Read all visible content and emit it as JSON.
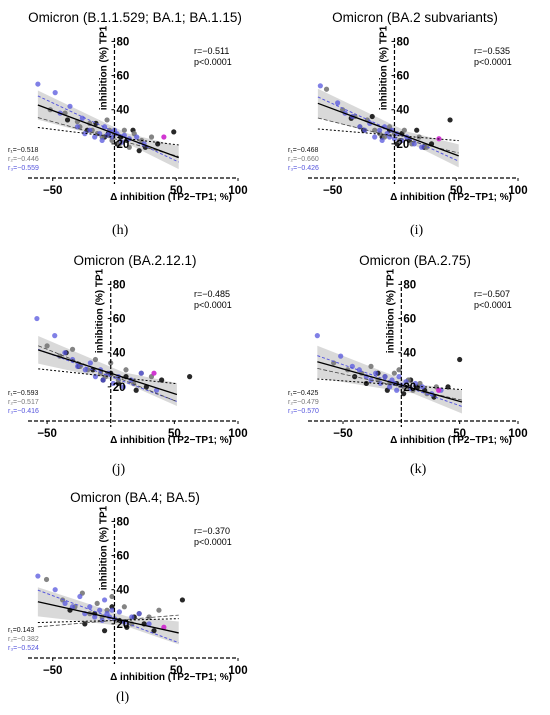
{
  "colors": {
    "group1": "#111111",
    "group2": "#777777",
    "group3": "#5555dd",
    "highlight": "#cc22cc",
    "band": "#cccccc"
  },
  "chart_data": [
    {
      "type": "scatter",
      "panel": "",
      "title": "Omicron (B.1.1.529; BA.1; BA.1.15)",
      "ylabel": "inhibition (%) TP1",
      "xlabel": "Δ inhibition (TP2−TP1; %)",
      "xlim": [
        -70,
        100
      ],
      "ylim": [
        0,
        82
      ],
      "xticks": [
        "−50",
        "50",
        "100"
      ],
      "yticks": [
        "20",
        "40",
        "60",
        "80"
      ],
      "r": "r=−0.511",
      "p": "p<0.0001",
      "r1": "r₁=−0.518",
      "r2": "r₂=−0.446",
      "r3": "r₃=−0.559",
      "fit": {
        "slope": -0.27,
        "intercept": 26
      },
      "fit_g1": {
        "slope": -0.2,
        "intercept": 23
      },
      "fit_g3": {
        "slope": -0.34,
        "intercept": 27
      },
      "fit_dotted": {
        "slope": -0.09,
        "intercept": 24
      },
      "series": [
        {
          "group": 1,
          "x": [
            -38,
            -22,
            -15,
            -8,
            -5,
            2,
            5,
            10,
            15,
            20,
            25,
            35,
            48
          ],
          "y": [
            34,
            28,
            32,
            24,
            26,
            20,
            24,
            22,
            28,
            16,
            18,
            20,
            27
          ]
        },
        {
          "group": 2,
          "x": [
            -52,
            -40,
            -30,
            -28,
            -20,
            -18,
            -14,
            -10,
            -6,
            -4,
            -2,
            0,
            4,
            8,
            12,
            16,
            22,
            30
          ],
          "y": [
            40,
            38,
            33,
            30,
            32,
            28,
            26,
            24,
            34,
            28,
            22,
            26,
            20,
            28,
            18,
            26,
            22,
            24
          ]
        },
        {
          "group": 3,
          "x": [
            -62,
            -48,
            -44,
            -36,
            -30,
            -26,
            -24,
            -20,
            -16,
            -12,
            -10,
            -8,
            -6,
            -4,
            -2,
            0,
            2,
            6,
            8,
            12,
            18,
            24
          ],
          "y": [
            55,
            50,
            38,
            42,
            30,
            35,
            26,
            28,
            24,
            26,
            22,
            30,
            25,
            27,
            24,
            28,
            26,
            21,
            25,
            23,
            24,
            20
          ]
        },
        {
          "group": 4,
          "x": [
            40
          ],
          "y": [
            24
          ]
        }
      ]
    },
    {
      "type": "scatter",
      "panel": "",
      "title": "Omicron (BA.2 subvariants)",
      "ylabel": "inhibition (%) TP1",
      "xlabel": "Δ inhibition (TP2−TP1; %)",
      "xlim": [
        -70,
        100
      ],
      "ylim": [
        0,
        82
      ],
      "xticks": [
        "−50",
        "50",
        "100"
      ],
      "yticks": [
        "20",
        "40",
        "60",
        "80"
      ],
      "r": "r=−0.535",
      "p": "p<0.0001",
      "r1": "r₁=−0.468",
      "r2": "r₂=−0.660",
      "r3": "r₃=−0.426",
      "fit": {
        "slope": -0.27,
        "intercept": 27
      },
      "fit_g1": {
        "slope": -0.18,
        "intercept": 24
      },
      "fit_g3": {
        "slope": -0.33,
        "intercept": 27
      },
      "fit_dotted": {
        "slope": -0.06,
        "intercept": 25
      },
      "series": [
        {
          "group": 1,
          "x": [
            -35,
            -25,
            -18,
            -10,
            -4,
            2,
            6,
            12,
            18,
            24,
            30,
            45
          ],
          "y": [
            35,
            28,
            36,
            24,
            28,
            20,
            26,
            22,
            28,
            18,
            20,
            34
          ]
        },
        {
          "group": 2,
          "x": [
            -55,
            -42,
            -32,
            -28,
            -22,
            -16,
            -12,
            -8,
            -4,
            0,
            4,
            8,
            14,
            20,
            26
          ],
          "y": [
            52,
            40,
            36,
            30,
            34,
            28,
            26,
            24,
            30,
            26,
            22,
            28,
            20,
            24,
            18
          ]
        },
        {
          "group": 3,
          "x": [
            -60,
            -46,
            -40,
            -34,
            -28,
            -24,
            -20,
            -16,
            -12,
            -10,
            -8,
            -6,
            -4,
            -2,
            0,
            2,
            6,
            10,
            16,
            22
          ],
          "y": [
            54,
            44,
            38,
            36,
            30,
            28,
            32,
            24,
            28,
            22,
            30,
            26,
            24,
            28,
            23,
            26,
            22,
            24,
            20,
            18
          ]
        },
        {
          "group": 4,
          "x": [
            36
          ],
          "y": [
            23
          ]
        }
      ]
    },
    {
      "type": "scatter",
      "panel": "",
      "title": "Omicron (BA.2.12.1)",
      "ylabel": "inhibition (%) TP1",
      "xlabel": "Δ inhibition (TP2−TP1; %)",
      "xlim": [
        -65,
        100
      ],
      "ylim": [
        0,
        82
      ],
      "xticks": [
        "−50",
        "50",
        "100"
      ],
      "yticks": [
        "20",
        "40",
        "60",
        "80"
      ],
      "r": "r=−0.485",
      "p": "p<0.0001",
      "r1": "r₁=−0.593",
      "r2": "r₂=−0.517",
      "r3": "r₃=−0.416",
      "fit": {
        "slope": -0.24,
        "intercept": 28
      },
      "fit_g1": {
        "slope": -0.3,
        "intercept": 27
      },
      "fit_g3": {
        "slope": -0.28,
        "intercept": 26
      },
      "fit_dotted": {
        "slope": -0.08,
        "intercept": 26
      },
      "series": [
        {
          "group": 1,
          "x": [
            -35,
            -25,
            -14,
            -6,
            0,
            6,
            12,
            20,
            28,
            40,
            62
          ],
          "y": [
            40,
            32,
            30,
            24,
            28,
            22,
            26,
            18,
            20,
            24,
            26
          ]
        },
        {
          "group": 2,
          "x": [
            -50,
            -40,
            -30,
            -24,
            -18,
            -12,
            -8,
            -4,
            0,
            6,
            12,
            18,
            24,
            32
          ],
          "y": [
            44,
            38,
            42,
            32,
            30,
            36,
            28,
            26,
            34,
            24,
            30,
            22,
            28,
            26
          ]
        },
        {
          "group": 3,
          "x": [
            -58,
            -44,
            -36,
            -30,
            -26,
            -20,
            -16,
            -12,
            -8,
            -6,
            -2,
            2,
            6,
            10,
            16,
            24,
            36
          ],
          "y": [
            60,
            50,
            40,
            36,
            32,
            30,
            34,
            26,
            30,
            24,
            28,
            22,
            26,
            20,
            24,
            28,
            18
          ]
        },
        {
          "group": 4,
          "x": [
            34
          ],
          "y": [
            28
          ]
        }
      ]
    },
    {
      "type": "scatter",
      "panel": "",
      "title": "Omicron (BA.2.75)",
      "ylabel": "inhibition (%) TP1",
      "xlabel": "Δ inhibition (TP2−TP1; %)",
      "xlim": [
        -80,
        100
      ],
      "ylim": [
        0,
        82
      ],
      "xticks": [
        "−50",
        "50",
        "100"
      ],
      "yticks": [
        "20",
        "40",
        "60",
        "80"
      ],
      "r": "r=−0.507",
      "p": "p<0.0001",
      "r1": "r₁=−0.425",
      "r2": "r₂=−0.479",
      "r3": "r₃=−0.570",
      "fit": {
        "slope": -0.19,
        "intercept": 21
      },
      "fit_g1": {
        "slope": -0.15,
        "intercept": 20
      },
      "fit_g3": {
        "slope": -0.24,
        "intercept": 21
      },
      "fit_dotted": {
        "slope": -0.05,
        "intercept": 21
      },
      "series": [
        {
          "group": 1,
          "x": [
            -40,
            -30,
            -20,
            -12,
            -4,
            2,
            8,
            14,
            20,
            28,
            40,
            50
          ],
          "y": [
            26,
            22,
            28,
            18,
            22,
            16,
            24,
            20,
            18,
            14,
            20,
            36
          ]
        },
        {
          "group": 2,
          "x": [
            -58,
            -46,
            -34,
            -26,
            -20,
            -14,
            -10,
            -6,
            -2,
            2,
            6,
            10,
            16,
            22,
            30
          ],
          "y": [
            34,
            30,
            28,
            32,
            24,
            26,
            22,
            28,
            30,
            20,
            24,
            18,
            22,
            16,
            20
          ]
        },
        {
          "group": 3,
          "x": [
            -72,
            -52,
            -42,
            -36,
            -30,
            -26,
            -22,
            -18,
            -14,
            -10,
            -8,
            -6,
            -4,
            -2,
            0,
            4,
            8,
            12,
            18,
            26,
            34
          ],
          "y": [
            50,
            38,
            32,
            30,
            26,
            24,
            28,
            22,
            26,
            20,
            24,
            22,
            18,
            26,
            21,
            23,
            19,
            22,
            20,
            16,
            18
          ]
        },
        {
          "group": 4,
          "x": [
            32
          ],
          "y": [
            18
          ]
        }
      ]
    },
    {
      "type": "scatter",
      "panel": "",
      "title": "Omicron (BA.4; BA.5)",
      "ylabel": "inhibition (%) TP1",
      "xlabel": "Δ inhibition (TP2−TP1; %)",
      "xlim": [
        -70,
        100
      ],
      "ylim": [
        0,
        82
      ],
      "xticks": [
        "−50",
        "50",
        "100"
      ],
      "yticks": [
        "20",
        "40",
        "60",
        "80"
      ],
      "r": "r=−0.370",
      "p": "p<0.0001",
      "r1": "r₁=0.143",
      "r2": "r₂=−0.382",
      "r3": "r₃=−0.524",
      "fit": {
        "slope": -0.16,
        "intercept": 23
      },
      "fit_g1": {
        "slope": 0.06,
        "intercept": 22
      },
      "fit_g3": {
        "slope": -0.27,
        "intercept": 23
      },
      "fit_dotted": {
        "slope": 0.02,
        "intercept": 22
      },
      "series": [
        {
          "group": 1,
          "x": [
            -36,
            -24,
            -16,
            -8,
            -2,
            4,
            10,
            16,
            24,
            32,
            55
          ],
          "y": [
            28,
            20,
            26,
            16,
            30,
            22,
            18,
            24,
            20,
            16,
            34
          ]
        },
        {
          "group": 2,
          "x": [
            -55,
            -42,
            -32,
            -26,
            -20,
            -14,
            -10,
            -6,
            -2,
            2,
            8,
            14,
            20,
            28,
            36
          ],
          "y": [
            46,
            34,
            30,
            38,
            26,
            32,
            24,
            28,
            36,
            22,
            30,
            20,
            26,
            24,
            28
          ]
        },
        {
          "group": 3,
          "x": [
            -62,
            -48,
            -40,
            -34,
            -28,
            -24,
            -20,
            -16,
            -12,
            -10,
            -8,
            -6,
            -4,
            -2,
            0,
            4,
            8,
            14,
            20,
            28
          ],
          "y": [
            48,
            40,
            32,
            30,
            36,
            26,
            30,
            24,
            28,
            22,
            34,
            26,
            24,
            28,
            23,
            27,
            21,
            24,
            26,
            20
          ]
        },
        {
          "group": 4,
          "x": [
            40
          ],
          "y": [
            18
          ]
        }
      ]
    }
  ],
  "labels": [
    "(h)",
    "(i)",
    "(j)",
    "(k)",
    "(l)"
  ]
}
